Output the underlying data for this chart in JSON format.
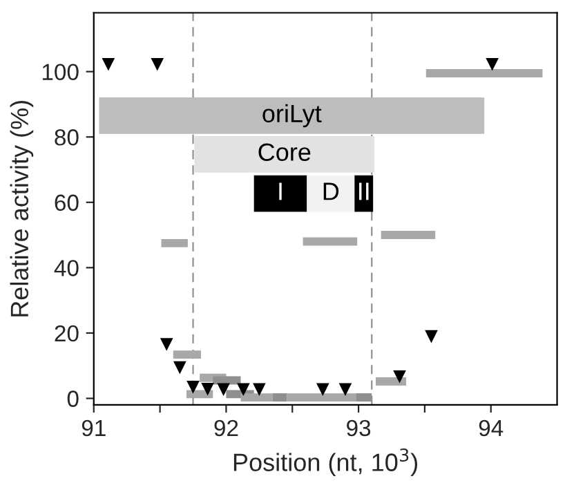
{
  "chart_data": {
    "type": "line",
    "xlabel": "Position (nt, 10$^{3}$)",
    "ylabel": "Relative activity (%)",
    "xlim": [
      91,
      94.5
    ],
    "ylim": [
      -2,
      118
    ],
    "xticks": [
      91,
      {
        "value": 91.5,
        "label": null
      },
      92,
      {
        "value": 92.5,
        "label": null
      },
      93,
      {
        "value": 93.5,
        "label": null
      },
      94
    ],
    "yticks": [
      0,
      20,
      40,
      60,
      80,
      100
    ],
    "grid": false,
    "legend": false,
    "ref_lines": [
      {
        "axis": "x",
        "value": 91.75,
        "color": "#909090",
        "line_style": "dashed"
      },
      {
        "axis": "x",
        "value": 93.1,
        "color": "#909090",
        "line_style": "dashed"
      }
    ],
    "annotations": [
      {
        "text": "oriLyt",
        "x": 92.495,
        "y": 86.5
      },
      {
        "text": "Core",
        "x": 92.44,
        "y": 74.7
      },
      {
        "text": "I",
        "x": 92.41,
        "y": 62.7
      },
      {
        "text": "D",
        "x": 92.79,
        "y": 62.7
      },
      {
        "text": "II",
        "x": 93.04,
        "y": 62.7
      }
    ],
    "series": [
      {
        "color": "#a8a8a8",
        "x": [
          91.51,
          91.71
        ],
        "values": [
          47.5,
          47.5
        ]
      },
      {
        "color": "#a8a8a8",
        "x": [
          92.58,
          92.99
        ],
        "values": [
          48,
          48
        ]
      },
      {
        "color": "#a8a8a8",
        "x": [
          93.17,
          93.58
        ],
        "values": [
          50,
          50
        ]
      },
      {
        "color": "#a8a8a8",
        "x": [
          91.6,
          91.81
        ],
        "values": [
          13.4,
          13.4
        ]
      },
      {
        "color": "#a8a8a8",
        "x": [
          91.8,
          92.0
        ],
        "values": [
          6.3,
          6.3
        ]
      },
      {
        "color": "#8f8f8f",
        "x": [
          91.9,
          92.11
        ],
        "values": [
          5.5,
          5.5
        ]
      },
      {
        "color": "#a8a8a8",
        "x": [
          91.7,
          91.9
        ],
        "values": [
          1.3,
          1.3
        ]
      },
      {
        "color": "#8f8f8f",
        "x": [
          92.0,
          92.21
        ],
        "values": [
          1.3,
          1.3
        ]
      },
      {
        "color": "#a8a8a8",
        "x": [
          92.11,
          92.35
        ],
        "values": [
          0.3,
          0.3
        ]
      },
      {
        "color": "#8f8f8f",
        "x": [
          92.35,
          92.46
        ],
        "values": [
          0.3,
          0.3
        ]
      },
      {
        "color": "#a8a8a8",
        "x": [
          92.46,
          92.98
        ],
        "values": [
          0.3,
          0.3
        ]
      },
      {
        "color": "#8f8f8f",
        "x": [
          92.98,
          93.1
        ],
        "values": [
          0.3,
          0.3
        ]
      },
      {
        "color": "#a8a8a8",
        "x": [
          93.13,
          93.36
        ],
        "values": [
          5.2,
          5.2
        ]
      },
      {
        "color": "#a8a8a8",
        "x": [
          93.51,
          94.39
        ],
        "values": [
          99.5,
          99.5
        ]
      },
      {
        "color": "#bdbdbd",
        "x": [
          91.04,
          93.95
        ],
        "values": [
          86.5,
          86.5
        ]
      },
      {
        "color": "#e2e2e2",
        "x": [
          91.76,
          93.12
        ],
        "values": [
          74.7,
          74.7
        ]
      },
      {
        "color": "#000000",
        "x": [
          92.21,
          92.61
        ],
        "values": [
          62.7,
          62.7
        ]
      },
      {
        "color": "#f2f2f2",
        "x": [
          92.61,
          92.97
        ],
        "values": [
          62.7,
          62.7
        ]
      },
      {
        "color": "#000000",
        "x": [
          92.97,
          93.11
        ],
        "values": [
          62.7,
          62.7
        ]
      },
      {
        "type": "scatter",
        "marker": "triangle",
        "color": "#000000",
        "x": [
          91.11,
          91.48,
          94.01,
          91.55,
          91.65,
          91.75,
          91.86,
          91.98,
          92.13,
          92.25,
          92.73,
          92.9,
          93.31,
          93.55
        ],
        "values": [
          102.2,
          102.2,
          102.2,
          16.5,
          9.4,
          3.4,
          2.8,
          2.7,
          2.7,
          2.7,
          2.7,
          2.7,
          6.6,
          18.9
        ]
      }
    ]
  }
}
